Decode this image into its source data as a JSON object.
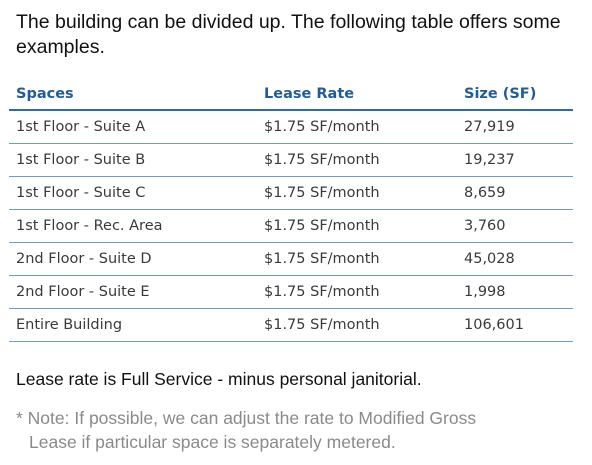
{
  "intro": "The building can be divided up.  The following table offers some examples.",
  "table": {
    "headers": [
      "Spaces",
      "Lease Rate",
      "Size (SF)"
    ],
    "rows": [
      [
        "1st Floor - Suite A",
        "$1.75 SF/month",
        "27,919"
      ],
      [
        "1st Floor - Suite B",
        "$1.75 SF/month",
        "19,237"
      ],
      [
        "1st Floor - Suite C",
        "$1.75 SF/month",
        "8,659"
      ],
      [
        "1st Floor - Rec. Area",
        "$1.75 SF/month",
        "3,760"
      ],
      [
        "2nd Floor - Suite D",
        "$1.75 SF/month",
        "45,028"
      ],
      [
        "2nd Floor - Suite E",
        "$1.75 SF/month",
        "1,998"
      ],
      [
        "Entire Building",
        "$1.75 SF/month",
        "106,601"
      ]
    ]
  },
  "service_note": "Lease rate is Full Service - minus personal janitorial.",
  "footnote": {
    "line1": "* Note:  If possible, we can adjust the rate to Modified Gross",
    "line2": "Lease if particular space is separately metered."
  },
  "colors": {
    "header_text": "#1f5c99",
    "rule": "#2e6da4",
    "row_divider": "#6f9bc6",
    "footnote_text": "#8a8a8a"
  }
}
